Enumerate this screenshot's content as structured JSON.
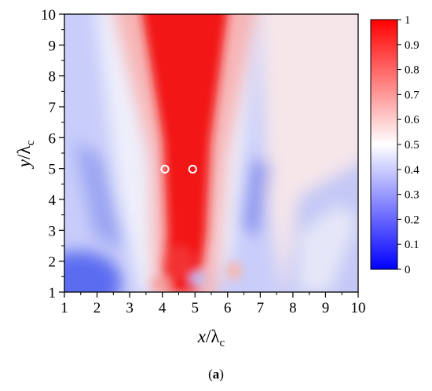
{
  "chart_data": {
    "type": "heatmap",
    "xlabel": {
      "var": "x",
      "sep": "/λ",
      "sub": "c"
    },
    "ylabel": {
      "var": "y",
      "sep": "/λ",
      "sub": "c"
    },
    "xlim": [
      1,
      10
    ],
    "ylim": [
      1,
      10
    ],
    "x_ticks": [
      "1",
      "2",
      "3",
      "4",
      "5",
      "6",
      "7",
      "8",
      "9",
      "10"
    ],
    "y_ticks": [
      "1",
      "2",
      "3",
      "4",
      "5",
      "6",
      "7",
      "8",
      "9",
      "10"
    ],
    "colorbar": {
      "range": [
        0,
        1
      ],
      "ticks": [
        "0",
        "0.1",
        "0.2",
        "0.3",
        "0.4",
        "0.5",
        "0.6",
        "0.7",
        "0.8",
        "0.9",
        "1"
      ],
      "colors": [
        "#0000ff",
        "#ffffff",
        "#ff0000"
      ]
    },
    "grid": false,
    "markers": [
      {
        "x": 4.08,
        "y": 4.98,
        "shape": "open-circle",
        "color": "#ffffff"
      },
      {
        "x": 4.93,
        "y": 4.98,
        "shape": "open-circle",
        "color": "#ffffff"
      }
    ],
    "field_description_points": [
      {
        "x": 5.0,
        "y": 9.5,
        "v": 1.0
      },
      {
        "x": 5.0,
        "y": 5.0,
        "v": 1.0
      },
      {
        "x": 4.8,
        "y": 2.0,
        "v": 0.95
      },
      {
        "x": 1.5,
        "y": 1.3,
        "v": 0.12
      },
      {
        "x": 2.0,
        "y": 8.0,
        "v": 0.4
      },
      {
        "x": 9.0,
        "y": 9.0,
        "v": 0.58
      },
      {
        "x": 7.0,
        "y": 4.0,
        "v": 0.3
      },
      {
        "x": 9.5,
        "y": 2.0,
        "v": 0.35
      }
    ]
  },
  "caption": {
    "open": "(",
    "letter": "a",
    "close": ")"
  }
}
